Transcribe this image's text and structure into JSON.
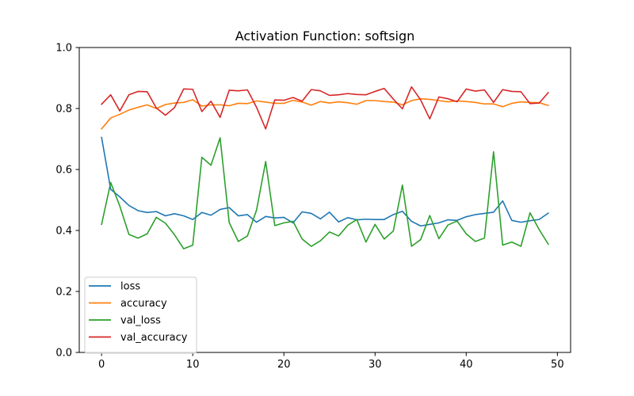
{
  "chart_data": {
    "type": "line",
    "title": "Activation Function: softsign",
    "xlabel": "",
    "ylabel": "",
    "xlim": [
      -2.45,
      51.45
    ],
    "ylim": [
      0.0,
      1.0
    ],
    "x_ticks": [
      0,
      10,
      20,
      30,
      40,
      50
    ],
    "y_ticks": [
      0.0,
      0.2,
      0.4,
      0.6,
      0.8,
      1.0
    ],
    "x_tick_labels": [
      "0",
      "10",
      "20",
      "30",
      "40",
      "50"
    ],
    "y_tick_labels": [
      "0.0",
      "0.2",
      "0.4",
      "0.6",
      "0.8",
      "1.0"
    ],
    "grid": false,
    "legend_position": "lower-left",
    "x": [
      0,
      1,
      2,
      3,
      4,
      5,
      6,
      7,
      8,
      9,
      10,
      11,
      12,
      13,
      14,
      15,
      16,
      17,
      18,
      19,
      20,
      21,
      22,
      23,
      24,
      25,
      26,
      27,
      28,
      29,
      30,
      31,
      32,
      33,
      34,
      35,
      36,
      37,
      38,
      39,
      40,
      41,
      42,
      43,
      44,
      45,
      46,
      47,
      48,
      49
    ],
    "series": [
      {
        "name": "loss",
        "color": "#1f77b4",
        "values": [
          0.705,
          0.535,
          0.51,
          0.482,
          0.465,
          0.459,
          0.462,
          0.448,
          0.455,
          0.448,
          0.436,
          0.459,
          0.45,
          0.469,
          0.475,
          0.448,
          0.452,
          0.427,
          0.446,
          0.441,
          0.443,
          0.425,
          0.461,
          0.456,
          0.438,
          0.46,
          0.428,
          0.442,
          0.435,
          0.437,
          0.436,
          0.436,
          0.452,
          0.463,
          0.43,
          0.415,
          0.42,
          0.425,
          0.435,
          0.433,
          0.445,
          0.452,
          0.456,
          0.46,
          0.497,
          0.433,
          0.427,
          0.432,
          0.436,
          0.457
        ]
      },
      {
        "name": "accuracy",
        "color": "#ff7f0e",
        "values": [
          0.733,
          0.769,
          0.781,
          0.795,
          0.804,
          0.812,
          0.8,
          0.813,
          0.818,
          0.82,
          0.829,
          0.808,
          0.812,
          0.812,
          0.809,
          0.817,
          0.816,
          0.825,
          0.821,
          0.817,
          0.817,
          0.827,
          0.821,
          0.811,
          0.823,
          0.818,
          0.822,
          0.819,
          0.814,
          0.826,
          0.826,
          0.823,
          0.821,
          0.812,
          0.826,
          0.832,
          0.83,
          0.826,
          0.822,
          0.825,
          0.823,
          0.82,
          0.815,
          0.815,
          0.806,
          0.817,
          0.822,
          0.82,
          0.819,
          0.81
        ]
      },
      {
        "name": "val_loss",
        "color": "#2ca02c",
        "values": [
          0.42,
          0.557,
          0.48,
          0.387,
          0.375,
          0.389,
          0.443,
          0.424,
          0.386,
          0.34,
          0.352,
          0.64,
          0.614,
          0.704,
          0.426,
          0.364,
          0.382,
          0.467,
          0.626,
          0.416,
          0.425,
          0.43,
          0.372,
          0.348,
          0.366,
          0.395,
          0.382,
          0.417,
          0.436,
          0.362,
          0.42,
          0.372,
          0.398,
          0.549,
          0.348,
          0.37,
          0.449,
          0.373,
          0.418,
          0.431,
          0.389,
          0.364,
          0.375,
          0.658,
          0.352,
          0.362,
          0.348,
          0.458,
          0.403,
          0.355
        ]
      },
      {
        "name": "val_accuracy",
        "color": "#d62728",
        "values": [
          0.814,
          0.845,
          0.792,
          0.845,
          0.856,
          0.855,
          0.802,
          0.778,
          0.803,
          0.864,
          0.863,
          0.79,
          0.824,
          0.771,
          0.86,
          0.858,
          0.861,
          0.804,
          0.733,
          0.828,
          0.827,
          0.836,
          0.824,
          0.862,
          0.858,
          0.843,
          0.845,
          0.849,
          0.846,
          0.845,
          0.856,
          0.866,
          0.831,
          0.799,
          0.871,
          0.828,
          0.766,
          0.838,
          0.832,
          0.822,
          0.864,
          0.857,
          0.861,
          0.82,
          0.862,
          0.856,
          0.855,
          0.816,
          0.818,
          0.852
        ]
      }
    ]
  }
}
